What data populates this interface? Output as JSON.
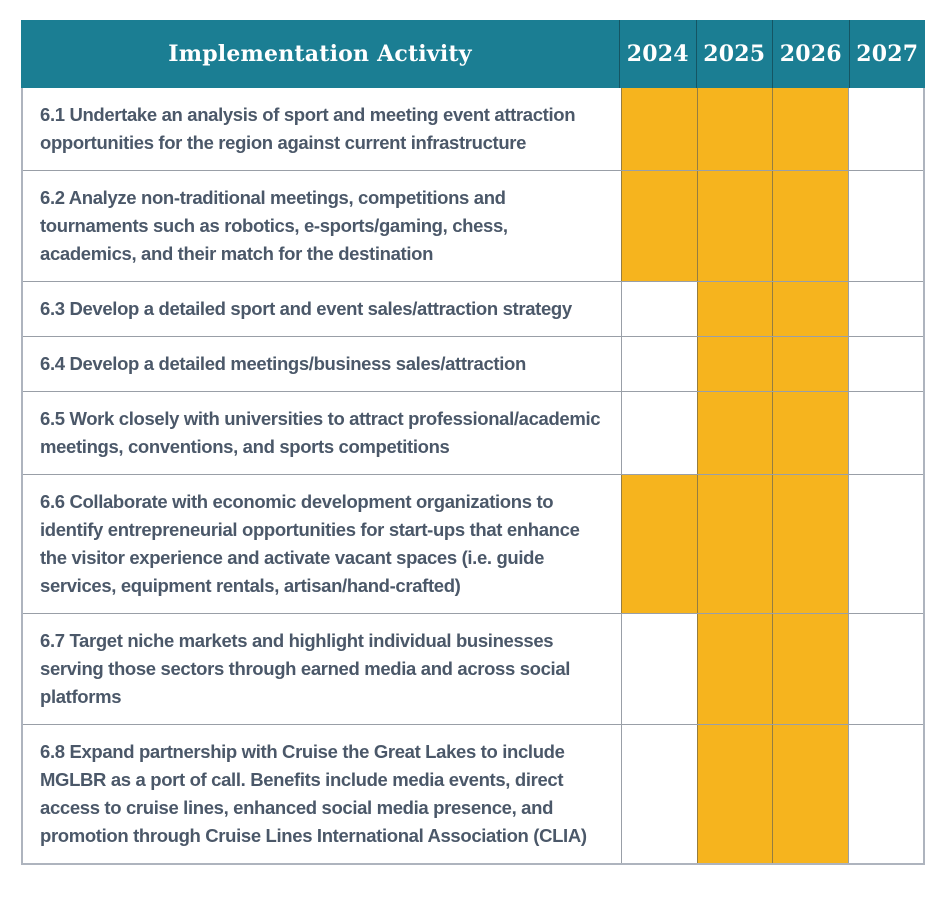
{
  "colors": {
    "header_bg": "#1B7E93",
    "header_text": "#FFFFFF",
    "highlight": "#F6B41E",
    "body_text": "#4B5869",
    "grid": "rgba(70,80,95,0.55)",
    "header_separator": "rgba(15,35,42,0.45)",
    "outer_border": "#AEB4BE",
    "row_bg": "#FFFFFF"
  },
  "table": {
    "header": {
      "activity": "Implementation Activity",
      "years": [
        "2024",
        "2025",
        "2026",
        "2027"
      ]
    },
    "rows": [
      {
        "label": "6.1 Undertake an analysis of sport and meeting event attraction opportunities for the region against current infrastructure",
        "years_active": [
          "2024",
          "2025",
          "2026"
        ]
      },
      {
        "label": "6.2 Analyze non-traditional meetings, competitions and tournaments such as robotics, e-sports/gaming, chess, academics, and their match for the destination",
        "years_active": [
          "2024",
          "2025",
          "2026"
        ]
      },
      {
        "label": "6.3 Develop a detailed sport and event sales/attraction strategy",
        "years_active": [
          "2025",
          "2026"
        ]
      },
      {
        "label": "6.4 Develop a detailed meetings/business sales/attraction",
        "years_active": [
          "2025",
          "2026"
        ]
      },
      {
        "label": "6.5 Work closely with universities to attract professional/academic meetings, conventions, and sports competitions",
        "years_active": [
          "2025",
          "2026"
        ]
      },
      {
        "label": "6.6 Collaborate with economic development organizations to identify entrepreneurial opportunities for start-ups that enhance the visitor experience and activate vacant spaces (i.e. guide services, equipment rentals, artisan/hand-crafted)",
        "years_active": [
          "2024",
          "2025",
          "2026"
        ]
      },
      {
        "label": "6.7 Target niche markets and highlight individual businesses serving those sectors through earned media and across social platforms",
        "years_active": [
          "2025",
          "2026"
        ]
      },
      {
        "label": "6.8 Expand partnership with Cruise the Great Lakes to include MGLBR as a port of call. Benefits include media events, direct access to cruise lines, enhanced social media presence, and promotion through Cruise Lines International Association (CLIA)",
        "years_active": [
          "2025",
          "2026"
        ]
      }
    ]
  },
  "chart_data": {
    "type": "table",
    "title": "Implementation Activity",
    "categories": [
      "2024",
      "2025",
      "2026",
      "2027"
    ],
    "series": [
      {
        "name": "6.1 Undertake an analysis of sport and meeting event attraction opportunities for the region against current infrastructure",
        "values": [
          1,
          1,
          1,
          0
        ]
      },
      {
        "name": "6.2 Analyze non-traditional meetings, competitions and tournaments such as robotics, e-sports/gaming, chess, academics, and their match for the destination",
        "values": [
          1,
          1,
          1,
          0
        ]
      },
      {
        "name": "6.3 Develop a detailed sport and event sales/attraction strategy",
        "values": [
          0,
          1,
          1,
          0
        ]
      },
      {
        "name": "6.4 Develop a detailed meetings/business sales/attraction",
        "values": [
          0,
          1,
          1,
          0
        ]
      },
      {
        "name": "6.5 Work closely with universities to attract professional/academic meetings, conventions, and sports competitions",
        "values": [
          0,
          1,
          1,
          0
        ]
      },
      {
        "name": "6.6 Collaborate with economic development organizations to identify entrepreneurial opportunities for start-ups that enhance the visitor experience and activate vacant spaces (i.e. guide services, equipment rentals, artisan/hand-crafted)",
        "values": [
          1,
          1,
          1,
          0
        ]
      },
      {
        "name": "6.7 Target niche markets and highlight individual businesses serving those sectors through earned media and across social platforms",
        "values": [
          0,
          1,
          1,
          0
        ]
      },
      {
        "name": "6.8 Expand partnership with Cruise the Great Lakes to include MGLBR as a port of call. Benefits include media events, direct access to cruise lines, enhanced social media presence, and promotion through Cruise Lines International Association (CLIA)",
        "values": [
          0,
          1,
          1,
          0
        ]
      }
    ],
    "legend": "filled cell = activity scheduled for that year",
    "cell_fill_color": "#F6B41E"
  }
}
